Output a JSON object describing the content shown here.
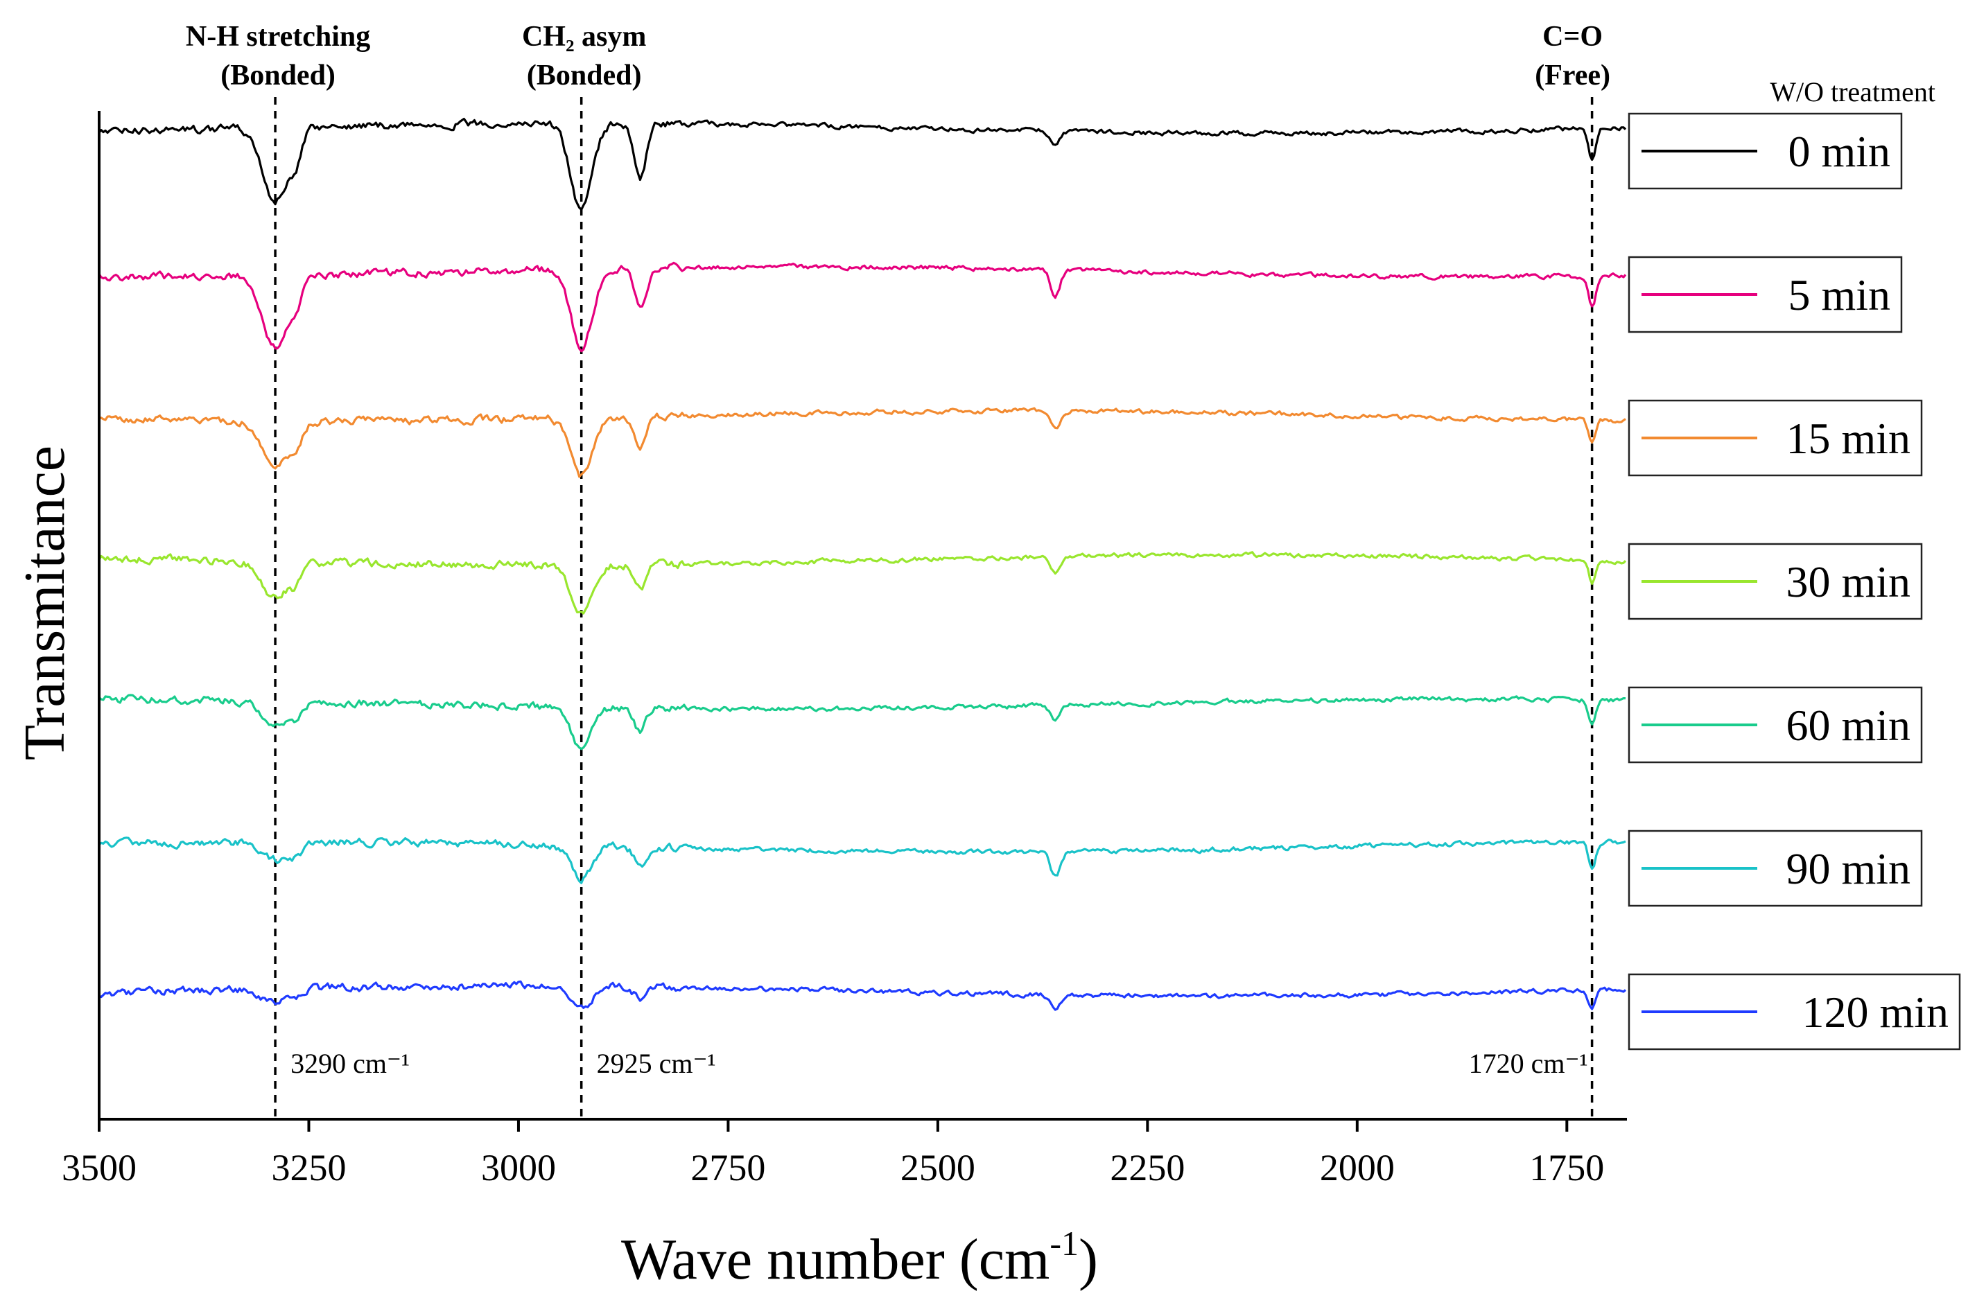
{
  "chart_data": {
    "type": "line",
    "title": "",
    "xlabel": "Wave number (cm-1)",
    "xlabel_main": "Wave number (cm",
    "xlabel_sup": "-1",
    "xlabel_close": ")",
    "ylabel": "Transmitance",
    "xlim": [
      3500,
      1680
    ],
    "x_ticks": [
      3500,
      3250,
      3000,
      2750,
      2500,
      2250,
      2000,
      1750
    ],
    "x_tick_labels": [
      "3500",
      "3250",
      "3000",
      "2750",
      "2500",
      "2250",
      "2000",
      "1750"
    ],
    "y_ticks_shown": false,
    "legend": {
      "title": "W/O treatment",
      "placement": "right"
    },
    "reference_lines": [
      {
        "x": 3290,
        "label_top": [
          "N-H stretching",
          "(Bonded)"
        ],
        "label_bottom": "3290 cm⁻¹"
      },
      {
        "x": 2925,
        "label_top": [
          "CH₂ asym",
          "(Bonded)"
        ],
        "label_bottom": "2925 cm⁻¹"
      },
      {
        "x": 1720,
        "label_top": [
          "C=O",
          "(Free)"
        ],
        "label_bottom": "1720 cm⁻¹"
      }
    ],
    "peaks": [
      {
        "x": 3290,
        "w": 22,
        "amps": [
          1.0,
          1.0,
          0.65,
          0.5,
          0.35,
          0.25,
          0.2
        ]
      },
      {
        "x": 3265,
        "w": 10,
        "amps": [
          0.35,
          0.3,
          0.25,
          0.2,
          0.15,
          0.15,
          0.1
        ]
      },
      {
        "x": 2925,
        "w": 18,
        "amps": [
          1.2,
          1.1,
          0.8,
          0.65,
          0.55,
          0.45,
          0.3
        ]
      },
      {
        "x": 2855,
        "w": 10,
        "amps": [
          0.75,
          0.55,
          0.4,
          0.35,
          0.3,
          0.25,
          0.15
        ]
      },
      {
        "x": 2360,
        "w": 8,
        "amps": [
          0.2,
          0.35,
          0.25,
          0.2,
          0.2,
          0.35,
          0.2
        ]
      },
      {
        "x": 1720,
        "w": 6,
        "amps": [
          0.45,
          0.45,
          0.35,
          0.3,
          0.3,
          0.35,
          0.25
        ]
      }
    ],
    "series": [
      {
        "name": "0 min",
        "color": "#000000"
      },
      {
        "name": "5 min",
        "color": "#e6007e"
      },
      {
        "name": "15 min",
        "color": "#f28a30"
      },
      {
        "name": "30 min",
        "color": "#99e62e"
      },
      {
        "name": "60 min",
        "color": "#19cc8c"
      },
      {
        "name": "90 min",
        "color": "#19c2c8"
      },
      {
        "name": "120 min",
        "color": "#1f3bff"
      }
    ]
  }
}
